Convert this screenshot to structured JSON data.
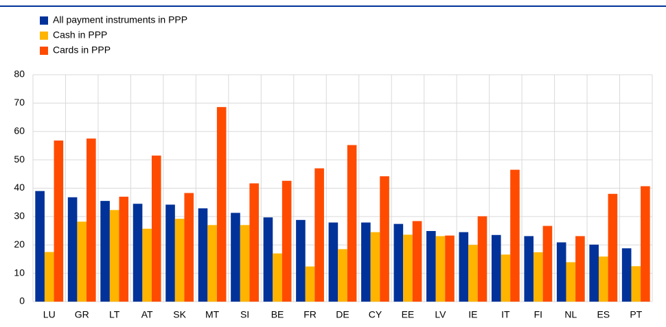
{
  "chart_data": {
    "type": "bar",
    "categories": [
      "LU",
      "GR",
      "LT",
      "AT",
      "SK",
      "MT",
      "SI",
      "BE",
      "FR",
      "DE",
      "CY",
      "EE",
      "LV",
      "IE",
      "IT",
      "FI",
      "NL",
      "ES",
      "PT"
    ],
    "series": [
      {
        "name": "All payment instruments in PPP",
        "color": "#003299",
        "values": [
          39,
          36.8,
          35.5,
          34.5,
          34.2,
          32.9,
          31.3,
          29.7,
          28.8,
          27.9,
          27.9,
          27.4,
          24.9,
          24.5,
          23.5,
          23.1,
          20.9,
          20.1,
          18.8
        ]
      },
      {
        "name": "Cash in PPP",
        "color": "#ffb400",
        "values": [
          17.5,
          28.2,
          32.3,
          25.7,
          29.2,
          27,
          27,
          17,
          12.4,
          18.5,
          24.5,
          23.6,
          23.1,
          20,
          16.6,
          17.4,
          13.9,
          15.9,
          12.5
        ]
      },
      {
        "name": "Cards in PPP",
        "color": "#ff4b00",
        "values": [
          56.8,
          57.5,
          37,
          51.5,
          38.3,
          68.6,
          41.7,
          42.6,
          47,
          55.2,
          44.2,
          28.4,
          23.3,
          30.1,
          46.5,
          26.7,
          23.1,
          38,
          40.7
        ]
      }
    ],
    "ylim": [
      0,
      80
    ],
    "yticks": [
      0,
      10,
      20,
      30,
      40,
      50,
      60,
      70,
      80
    ],
    "grid": true,
    "legend": "top-left"
  }
}
